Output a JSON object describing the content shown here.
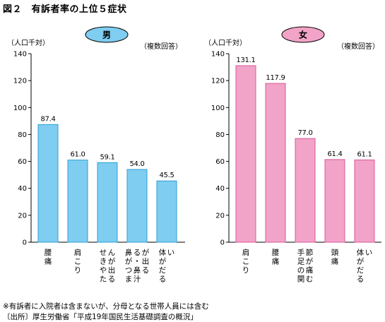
{
  "title": "図２　有訴者率の上位５症状",
  "chart_data": [
    {
      "type": "bar",
      "badge": "男",
      "unit_label": "（人口千対）",
      "note_label": "（複数回答）",
      "ylim": [
        0,
        140
      ],
      "yticks": [
        "0",
        "20",
        "40",
        "60",
        "80",
        "100",
        "120",
        "140"
      ],
      "categories": [
        "腰痛",
        "肩こり",
        "せきやたんが出る",
        "鼻がつまる・鼻汁が出る",
        "体がだるい"
      ],
      "category_lines": [
        [
          "腰",
          "痛"
        ],
        [
          "肩",
          "こ",
          "り"
        ],
        [
          "せ",
          "き",
          "や",
          "た",
          "ん",
          "が",
          "出",
          "る"
        ],
        [
          "鼻",
          "が",
          "つ",
          "ま",
          "る",
          "・",
          "鼻",
          "汁",
          "が",
          "出",
          "る"
        ],
        [
          "体",
          "が",
          "だ",
          "る",
          "い"
        ]
      ],
      "values": [
        87.4,
        61.0,
        59.1,
        54.0,
        45.5
      ],
      "value_labels": [
        "87.4",
        "61.0",
        "59.1",
        "54.0",
        "45.5"
      ],
      "bar_color": "#7fcdf0",
      "bar_stroke": "#2b9fd6",
      "badge_color": "#7fcdf0",
      "grid": false
    },
    {
      "type": "bar",
      "badge": "女",
      "unit_label": "（人口千対）",
      "note_label": "（複数回答）",
      "ylim": [
        0,
        140
      ],
      "yticks": [
        "0",
        "20",
        "40",
        "60",
        "80",
        "100",
        "120",
        "140"
      ],
      "categories": [
        "肩こり",
        "腰痛",
        "手足の関節が痛む",
        "頭痛",
        "体がだるい"
      ],
      "category_lines": [
        [
          "肩",
          "こ",
          "り"
        ],
        [
          "腰",
          "痛"
        ],
        [
          "手",
          "足",
          "の",
          "関",
          "節",
          "が",
          "痛",
          "む"
        ],
        [
          "頭",
          "痛"
        ],
        [
          "体",
          "が",
          "だ",
          "る",
          "い"
        ]
      ],
      "values": [
        131.1,
        117.9,
        77.0,
        61.4,
        61.1
      ],
      "value_labels": [
        "131.1",
        "117.9",
        "77.0",
        "61.4",
        "61.1"
      ],
      "bar_color": "#f2a3c8",
      "bar_stroke": "#d9589a",
      "badge_color": "#f2a3c8",
      "grid": false
    }
  ],
  "footnotes": [
    "※有訴者に入院者は含まないが、分母となる世帯人員には含む",
    "〔出所〕厚生労働省「平成19年国民生活基礎調査の概況」"
  ]
}
